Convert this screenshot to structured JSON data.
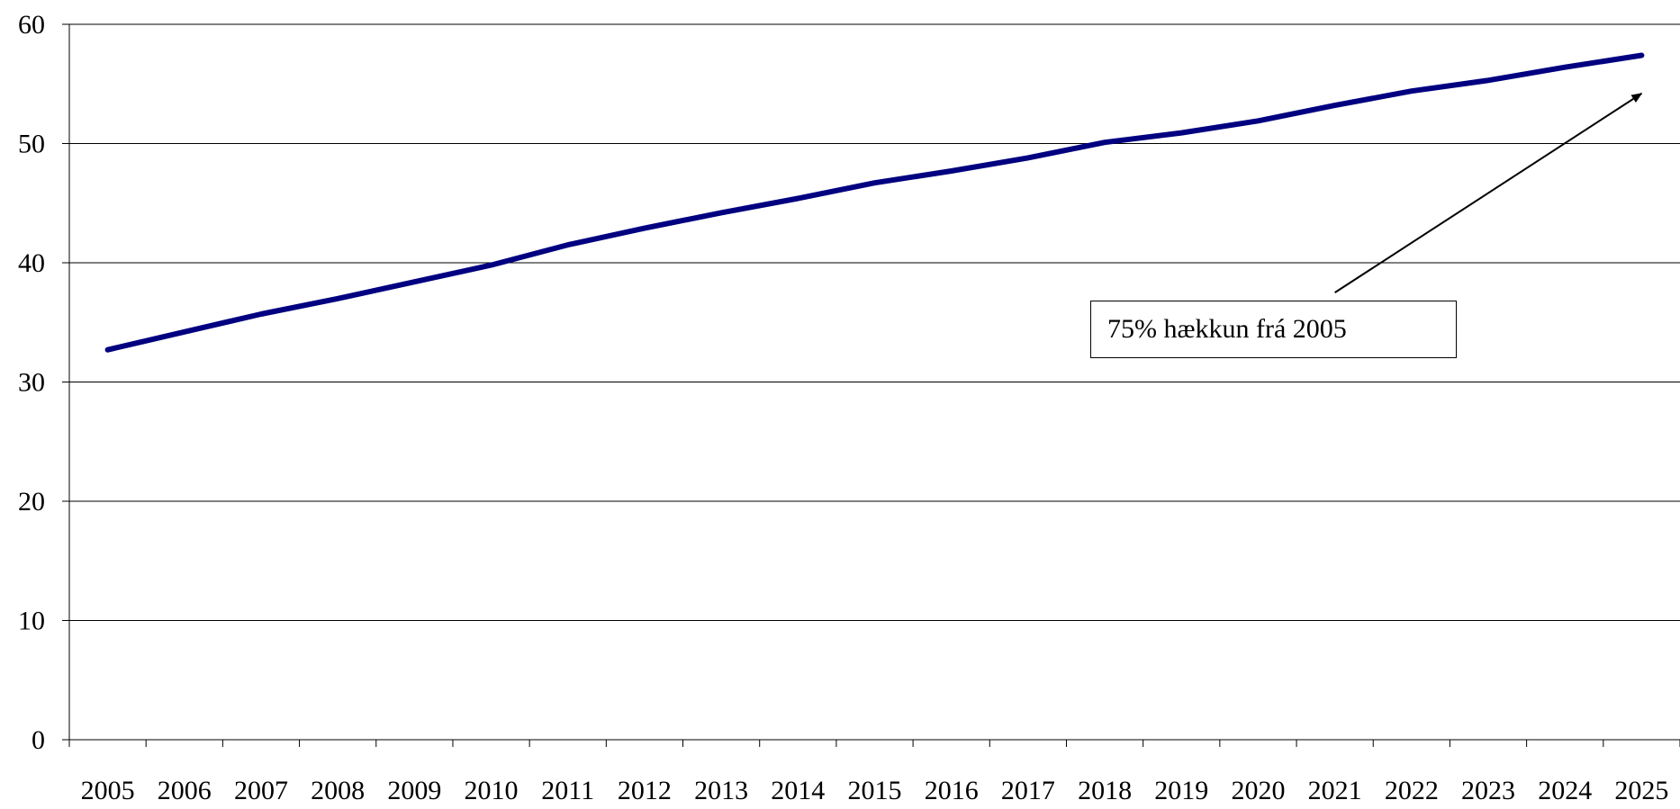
{
  "chart_data": {
    "type": "line",
    "title": "",
    "xlabel": "",
    "ylabel": "",
    "x": [
      2005,
      2006,
      2007,
      2008,
      2009,
      2010,
      2011,
      2012,
      2013,
      2014,
      2015,
      2016,
      2017,
      2018,
      2019,
      2020,
      2021,
      2022,
      2023,
      2024,
      2025
    ],
    "x_tick_labels": [
      "2005",
      "2006",
      "2007",
      "2008",
      "2009",
      "2010",
      "2011",
      "2012",
      "2013",
      "2014",
      "2015",
      "2016",
      "2017",
      "2018",
      "2019",
      "2020",
      "2021",
      "2022",
      "2023",
      "2024",
      "2025"
    ],
    "series": [
      {
        "values": [
          32.7,
          34.2,
          35.7,
          37.0,
          38.4,
          39.8,
          41.5,
          42.9,
          44.2,
          45.4,
          46.7,
          47.7,
          48.8,
          50.1,
          50.9,
          51.9,
          53.2,
          54.4,
          55.3,
          56.4,
          57.4
        ],
        "color": "#000080"
      }
    ],
    "ylim": [
      0,
      60
    ],
    "y_ticks": [
      0,
      10,
      20,
      30,
      40,
      50,
      60
    ],
    "y_tick_labels": [
      "0",
      "10",
      "20",
      "30",
      "40",
      "50",
      "60"
    ],
    "grid": "horizontal",
    "legend": "none",
    "annotations": [
      {
        "text": "75% hækkun frá 2005",
        "arrow_target": {
          "x": 2025,
          "y": 54.2
        },
        "arrow_from": {
          "x": 2021,
          "y": 37.5
        }
      }
    ],
    "colors": {
      "line": "#000080",
      "grid": "#000000",
      "axis": "#000000",
      "text": "#000000"
    }
  }
}
